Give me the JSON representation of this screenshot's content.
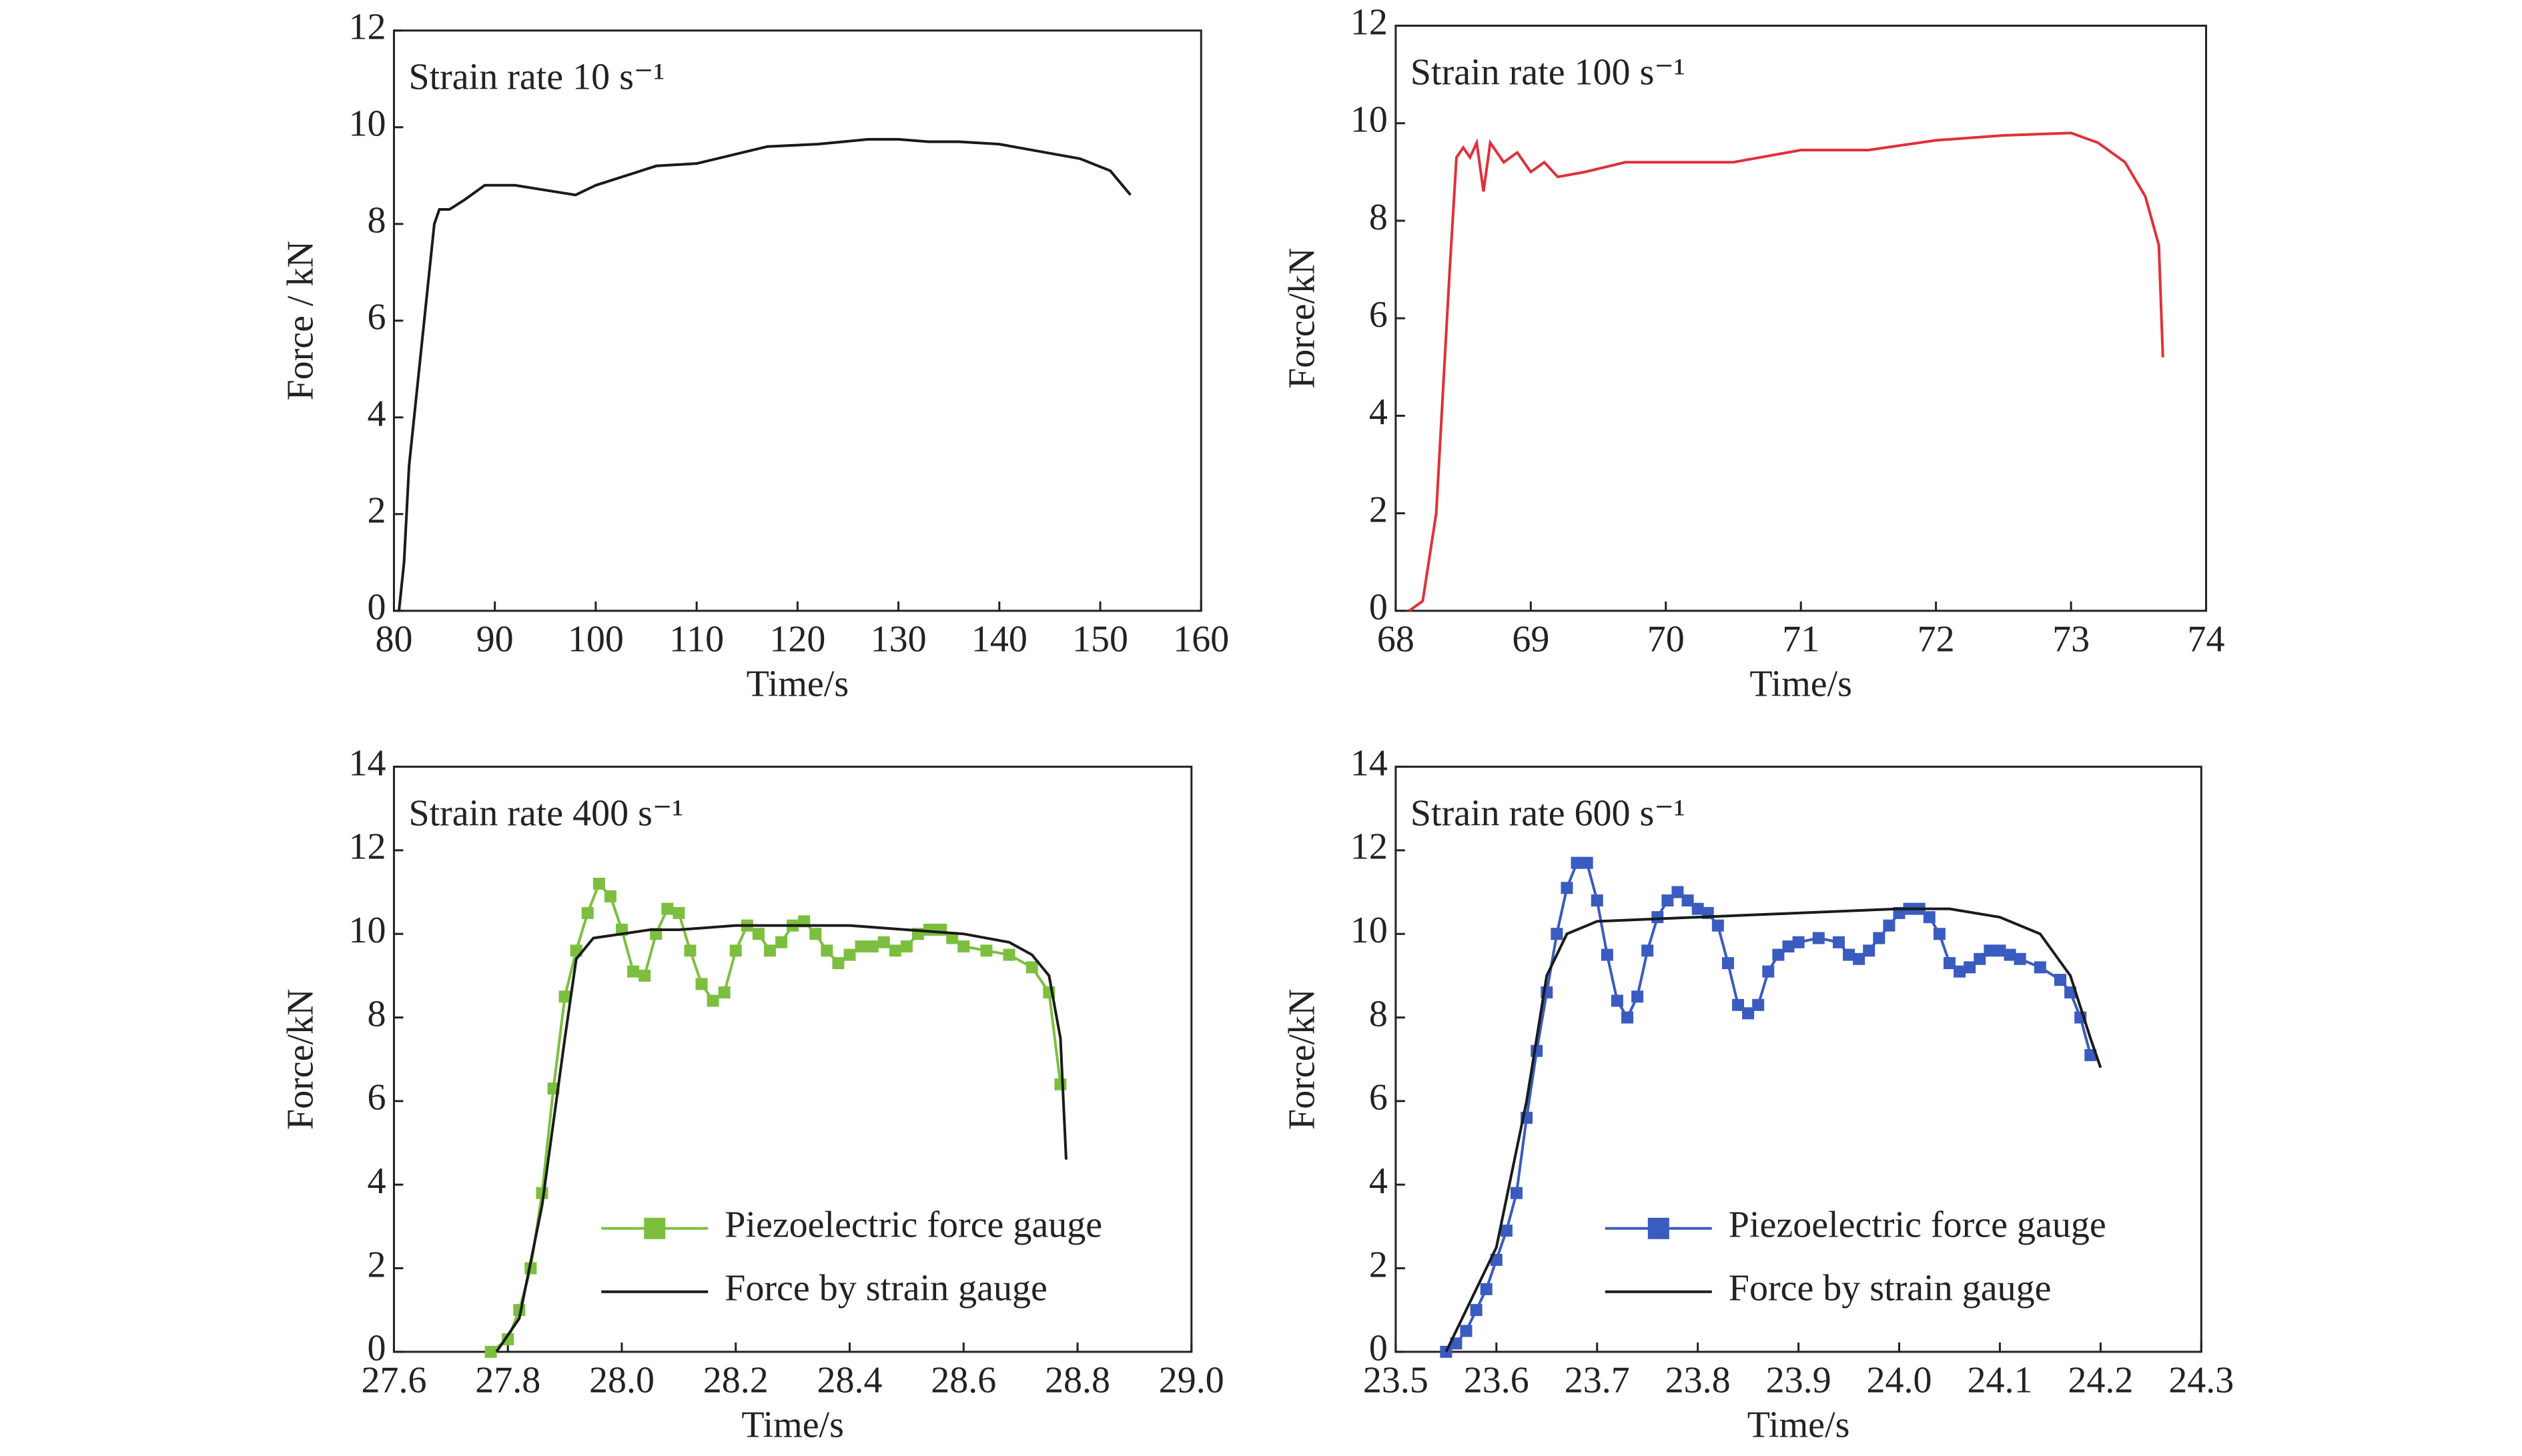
{
  "chart_data": [
    {
      "type": "line",
      "title": "Strain rate 10 s⁻¹",
      "x_label": "Time/s",
      "y_label": "Force / kN",
      "color": "#1a1a1a",
      "xlim": [
        80,
        160
      ],
      "ylim": [
        0,
        12
      ],
      "xticks": [
        80,
        90,
        100,
        110,
        120,
        130,
        140,
        150,
        160
      ],
      "yticks": [
        0,
        2,
        4,
        6,
        8,
        10,
        12
      ],
      "x": [
        80.5,
        81,
        81.5,
        82,
        83,
        84,
        84.5,
        85.5,
        87,
        89,
        92,
        95,
        98,
        100,
        103,
        106,
        110,
        113,
        117,
        122,
        127,
        130,
        133,
        136,
        140,
        144,
        148,
        151,
        153
      ],
      "values": [
        0,
        1,
        3,
        4,
        6,
        8,
        8.3,
        8.3,
        8.5,
        8.8,
        8.8,
        8.7,
        8.6,
        8.8,
        9.0,
        9.2,
        9.25,
        9.4,
        9.6,
        9.65,
        9.75,
        9.75,
        9.7,
        9.7,
        9.65,
        9.5,
        9.35,
        9.1,
        8.6
      ]
    },
    {
      "type": "line",
      "title": "Strain rate 100 s⁻¹",
      "x_label": "Time/s",
      "y_label": "Force/kN",
      "color": "#e0303a",
      "xlim": [
        68,
        74
      ],
      "ylim": [
        0,
        12
      ],
      "xticks": [
        68,
        69,
        70,
        71,
        72,
        73,
        74
      ],
      "yticks": [
        0,
        2,
        4,
        6,
        8,
        10,
        12
      ],
      "x": [
        68.1,
        68.2,
        68.3,
        68.4,
        68.45,
        68.5,
        68.55,
        68.6,
        68.65,
        68.7,
        68.8,
        68.9,
        69,
        69.1,
        69.2,
        69.4,
        69.7,
        70,
        70.5,
        71,
        71.5,
        72,
        72.5,
        73,
        73.2,
        73.4,
        73.55,
        73.65,
        73.68
      ],
      "values": [
        0,
        0.2,
        2,
        7,
        9.3,
        9.5,
        9.3,
        9.6,
        8.6,
        9.6,
        9.2,
        9.4,
        9.0,
        9.2,
        8.9,
        9.0,
        9.2,
        9.2,
        9.2,
        9.45,
        9.45,
        9.65,
        9.75,
        9.8,
        9.6,
        9.2,
        8.5,
        7.5,
        5.2
      ]
    },
    {
      "type": "line",
      "title": "Strain rate 400 s⁻¹",
      "x_label": "Time/s",
      "y_label": "Force/kN",
      "legend": "lower right",
      "xlim": [
        27.6,
        29.0
      ],
      "ylim": [
        0,
        14
      ],
      "xticks": [
        27.6,
        27.8,
        {
          "value": 28,
          "label": "28.0"
        },
        28.2,
        28.4,
        28.6,
        28.8,
        {
          "value": 29,
          "label": "29.0"
        }
      ],
      "yticks": [
        0,
        2,
        4,
        6,
        8,
        10,
        12,
        14
      ],
      "series": [
        {
          "name": "Piezoelectric force gauge",
          "color": "#7cbf3f",
          "marker": "square",
          "x": [
            27.77,
            27.8,
            27.82,
            27.84,
            27.86,
            27.88,
            27.9,
            27.92,
            27.94,
            27.96,
            27.98,
            28.0,
            28.02,
            28.04,
            28.06,
            28.08,
            28.1,
            28.12,
            28.14,
            28.16,
            28.18,
            28.2,
            28.22,
            28.24,
            28.26,
            28.28,
            28.3,
            28.32,
            28.34,
            28.36,
            28.38,
            28.4,
            28.42,
            28.44,
            28.46,
            28.48,
            28.5,
            28.52,
            28.54,
            28.56,
            28.58,
            28.6,
            28.64,
            28.68,
            28.72,
            28.75,
            28.77
          ],
          "values": [
            0,
            0.3,
            1,
            2,
            3.8,
            6.3,
            8.5,
            9.6,
            10.5,
            11.2,
            10.9,
            10.1,
            9.1,
            9.0,
            10.0,
            10.6,
            10.5,
            9.6,
            8.8,
            8.4,
            8.6,
            9.6,
            10.2,
            10.0,
            9.6,
            9.8,
            10.2,
            10.3,
            10.0,
            9.6,
            9.3,
            9.5,
            9.7,
            9.7,
            9.8,
            9.6,
            9.7,
            10.0,
            10.1,
            10.1,
            9.9,
            9.7,
            9.6,
            9.5,
            9.2,
            8.6,
            6.4
          ]
        },
        {
          "name": "Force by strain gauge",
          "color": "#1a1a1a",
          "x": [
            27.78,
            27.82,
            27.86,
            27.9,
            27.92,
            27.95,
            28.0,
            28.05,
            28.1,
            28.2,
            28.3,
            28.4,
            28.5,
            28.6,
            28.68,
            28.72,
            28.75,
            28.77,
            28.78
          ],
          "values": [
            0,
            0.8,
            3.5,
            7.5,
            9.4,
            9.9,
            10.0,
            10.1,
            10.1,
            10.2,
            10.2,
            10.2,
            10.1,
            10.0,
            9.8,
            9.5,
            9,
            7.5,
            4.6
          ]
        }
      ]
    },
    {
      "type": "line",
      "title": "Strain rate 600 s⁻¹",
      "x_label": "Time/s",
      "y_label": "Force/kN",
      "legend": "lower right",
      "xlim": [
        23.5,
        24.3
      ],
      "ylim": [
        0,
        14
      ],
      "xticks": [
        23.5,
        23.6,
        23.7,
        23.8,
        23.9,
        {
          "value": 24,
          "label": "24.0"
        },
        24.1,
        24.2,
        24.3
      ],
      "yticks": [
        0,
        2,
        4,
        6,
        8,
        10,
        12,
        14
      ],
      "series": [
        {
          "name": "Piezoelectric force gauge",
          "color": "#3a5bbf",
          "marker": "square",
          "x": [
            23.55,
            23.56,
            23.57,
            23.58,
            23.59,
            23.6,
            23.61,
            23.62,
            23.63,
            23.64,
            23.65,
            23.66,
            23.67,
            23.68,
            23.69,
            23.7,
            23.71,
            23.72,
            23.73,
            23.74,
            23.75,
            23.76,
            23.77,
            23.78,
            23.79,
            23.8,
            23.81,
            23.82,
            23.83,
            23.84,
            23.85,
            23.86,
            23.87,
            23.88,
            23.89,
            23.9,
            23.92,
            23.94,
            23.95,
            23.96,
            23.97,
            23.98,
            23.99,
            24.0,
            24.01,
            24.02,
            24.03,
            24.04,
            24.05,
            24.06,
            24.07,
            24.08,
            24.09,
            24.1,
            24.11,
            24.12,
            24.14,
            24.16,
            24.17,
            24.18,
            24.19
          ],
          "values": [
            0,
            0.2,
            0.5,
            1,
            1.5,
            2.2,
            2.9,
            3.8,
            5.6,
            7.2,
            8.6,
            10,
            11.1,
            11.7,
            11.7,
            10.8,
            9.5,
            8.4,
            8.0,
            8.5,
            9.6,
            10.4,
            10.8,
            11.0,
            10.8,
            10.6,
            10.5,
            10.2,
            9.3,
            8.3,
            8.1,
            8.3,
            9.1,
            9.5,
            9.7,
            9.8,
            9.9,
            9.8,
            9.5,
            9.4,
            9.6,
            9.9,
            10.2,
            10.5,
            10.6,
            10.6,
            10.4,
            10.0,
            9.3,
            9.1,
            9.2,
            9.4,
            9.6,
            9.6,
            9.5,
            9.4,
            9.2,
            8.9,
            8.6,
            8.0,
            7.1
          ]
        },
        {
          "name": "Force by strain gauge",
          "color": "#1a1a1a",
          "x": [
            23.55,
            23.6,
            23.63,
            23.65,
            23.67,
            23.7,
            23.8,
            23.9,
            24.0,
            24.05,
            24.1,
            24.14,
            24.17,
            24.19,
            24.2
          ],
          "values": [
            0,
            2.5,
            6,
            9,
            10.0,
            10.3,
            10.4,
            10.5,
            10.6,
            10.6,
            10.4,
            10.0,
            9.0,
            7.5,
            6.8
          ]
        }
      ]
    }
  ]
}
